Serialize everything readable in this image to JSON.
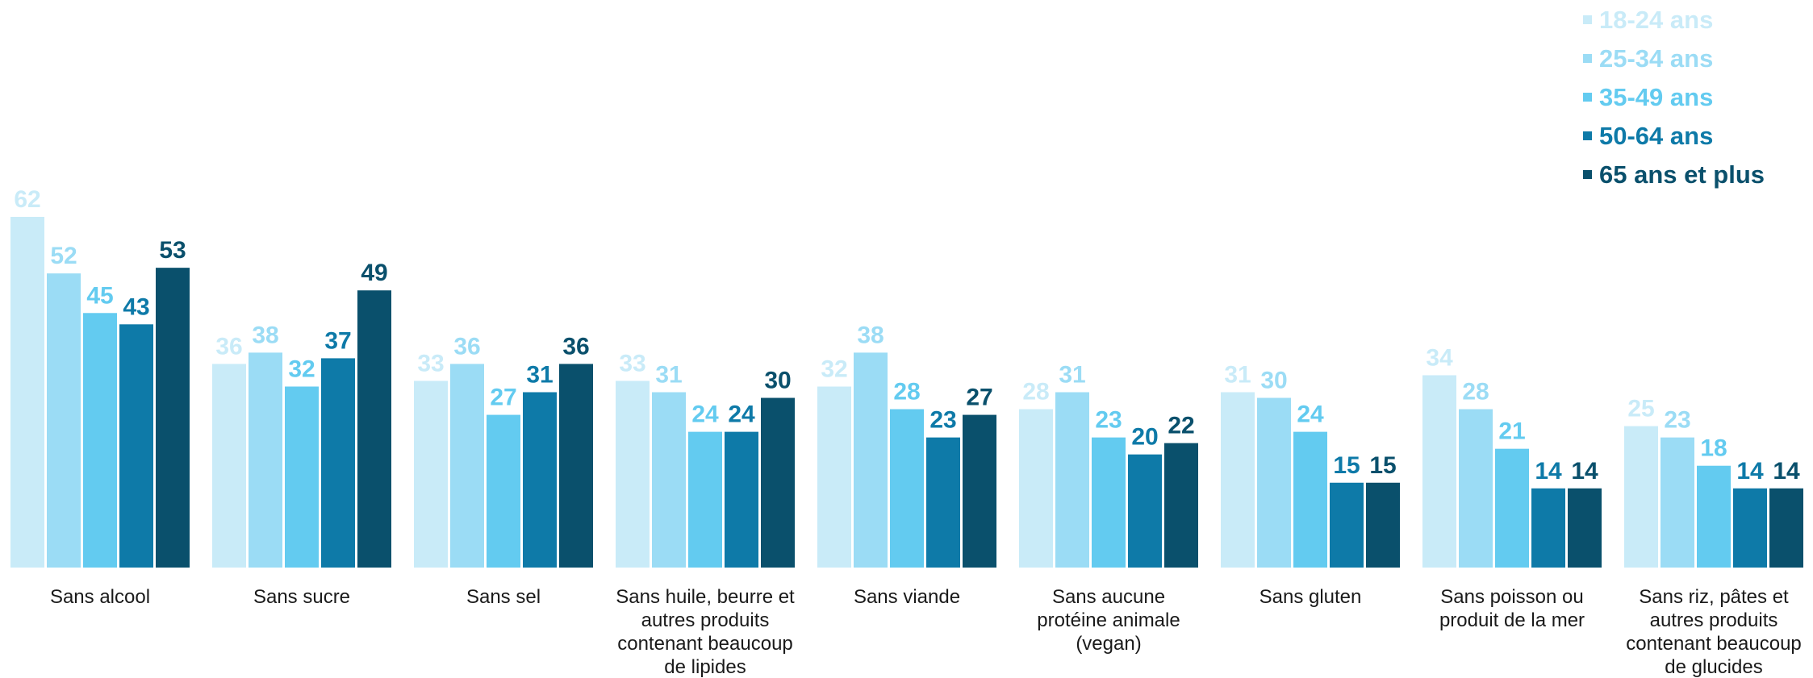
{
  "chart_data": {
    "type": "bar",
    "categories": [
      [
        "Sans alcool"
      ],
      [
        "Sans sucre"
      ],
      [
        "Sans sel"
      ],
      [
        "Sans huile, beurre et",
        "autres produits",
        "contenant beaucoup",
        "de lipides"
      ],
      [
        "Sans viande"
      ],
      [
        "Sans aucune",
        "protéine animale",
        "(vegan)"
      ],
      [
        "Sans gluten"
      ],
      [
        "Sans poisson ou",
        "produit de la mer"
      ],
      [
        "Sans riz, pâtes et",
        "autres produits",
        "contenant beaucoup",
        "de glucides"
      ]
    ],
    "series": [
      {
        "name": "18-24 ans",
        "color": "#c9ebf8",
        "values": [
          62,
          36,
          33,
          33,
          32,
          28,
          31,
          34,
          25
        ]
      },
      {
        "name": "25-34 ans",
        "color": "#9bdcf5",
        "values": [
          52,
          38,
          36,
          31,
          38,
          31,
          30,
          28,
          23
        ]
      },
      {
        "name": "35-49 ans",
        "color": "#63cbf0",
        "values": [
          45,
          32,
          27,
          24,
          28,
          23,
          24,
          21,
          18
        ]
      },
      {
        "name": "50-64 ans",
        "color": "#0e7aa8",
        "values": [
          43,
          37,
          31,
          24,
          23,
          20,
          15,
          14,
          14
        ]
      },
      {
        "name": "65 ans et plus",
        "color": "#0a506c",
        "values": [
          53,
          49,
          36,
          30,
          27,
          22,
          15,
          14,
          14
        ]
      }
    ],
    "ylim": [
      0,
      62
    ],
    "legend": "top-right",
    "grid": false
  }
}
